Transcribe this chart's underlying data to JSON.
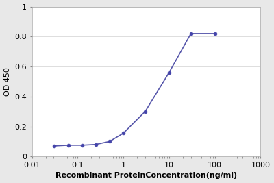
{
  "x_values": [
    0.031,
    0.063,
    0.125,
    0.25,
    0.5,
    1.0,
    3.0,
    10.0,
    30.0,
    100.0
  ],
  "y_values": [
    0.07,
    0.075,
    0.075,
    0.08,
    0.1,
    0.155,
    0.3,
    0.56,
    0.82,
    0.82
  ],
  "line_color": "#5555aa",
  "marker_color": "#4444aa",
  "marker_size": 3.5,
  "line_width": 1.2,
  "xlabel": "Recombinant ProteinConcentration(ng/ml)",
  "ylabel": "OD 450",
  "xlim": [
    0.01,
    1000
  ],
  "ylim": [
    0,
    1.0
  ],
  "yticks": [
    0,
    0.2,
    0.4,
    0.6,
    0.8,
    1.0
  ],
  "ytick_labels": [
    "0",
    "0.2",
    "0.4",
    "0.6",
    "0.8",
    "1"
  ],
  "xtick_values": [
    0.01,
    0.1,
    1,
    10,
    100,
    1000
  ],
  "xtick_labels": [
    "0.01",
    "0.1",
    "1",
    "10",
    "100",
    "1000"
  ],
  "background_color": "#e8e8e8",
  "plot_bg_color": "#ffffff",
  "xlabel_fontsize": 8,
  "ylabel_fontsize": 8,
  "tick_fontsize": 8,
  "grid_color": "#dddddd"
}
